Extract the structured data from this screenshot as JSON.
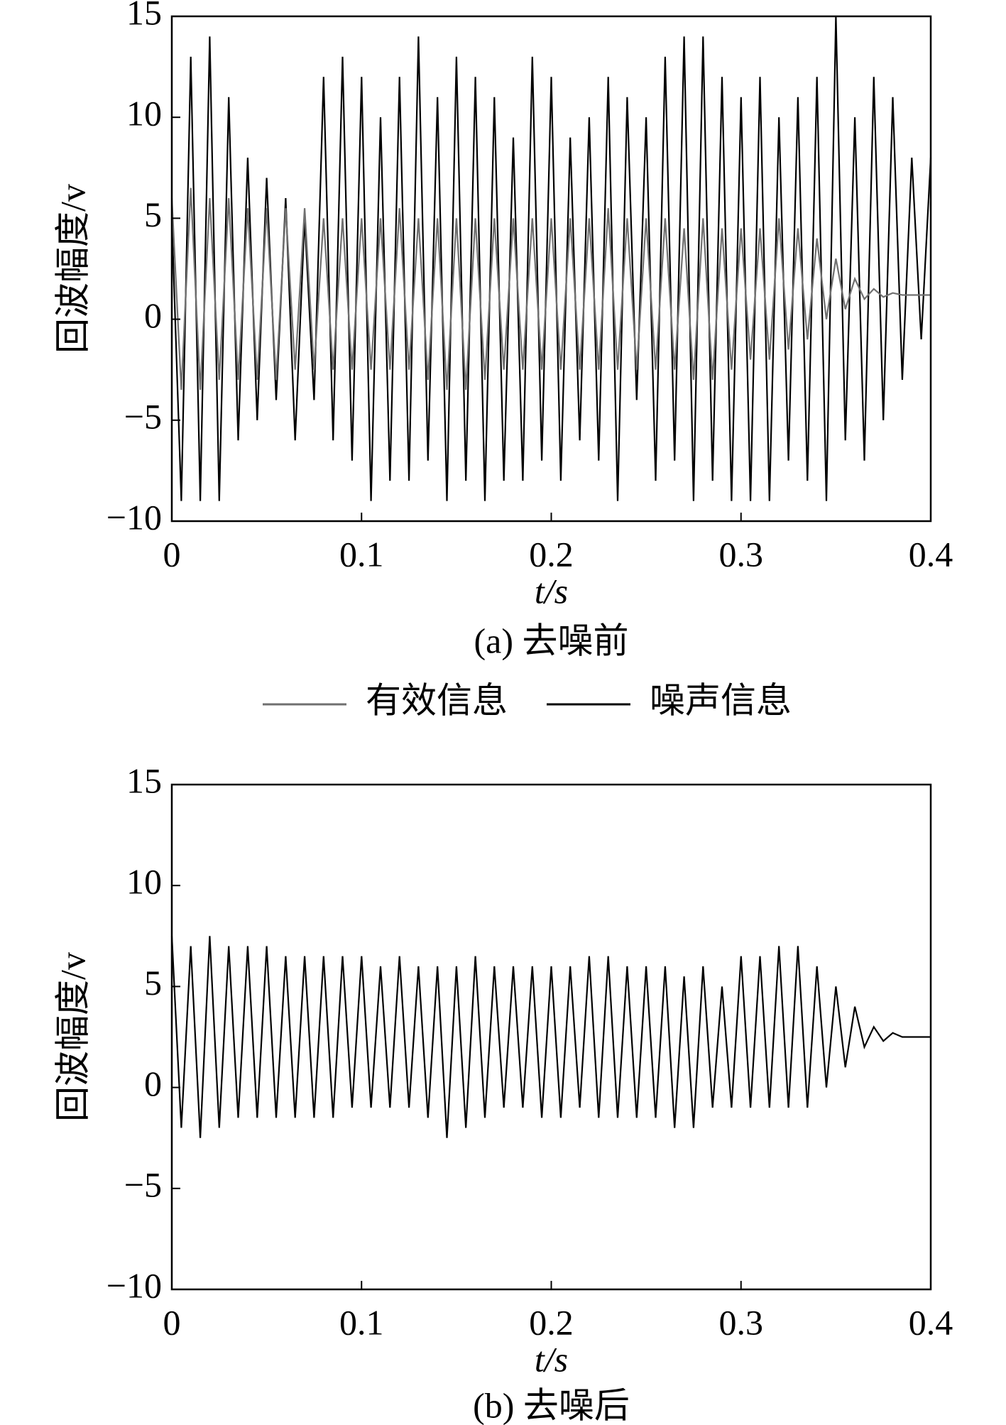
{
  "chart_data": [
    {
      "type": "line",
      "xlabel": "t/s",
      "ylabel": "回波幅度/v",
      "caption": "(a) 去噪前",
      "xlim": [
        0,
        0.4
      ],
      "ylim": [
        -10,
        15
      ],
      "xticks": [
        0,
        0.1,
        0.2,
        0.3,
        0.4
      ],
      "yticks": [
        {
          "value": -10,
          "label": "−10"
        },
        {
          "value": -5,
          "label": "−5"
        },
        0,
        5,
        10,
        15
      ],
      "legend": "below",
      "x": [
        0,
        0.005,
        0.01,
        0.015,
        0.02,
        0.025,
        0.03,
        0.035,
        0.04,
        0.045,
        0.05,
        0.055,
        0.06,
        0.065,
        0.07,
        0.075,
        0.08,
        0.085,
        0.09,
        0.095,
        0.1,
        0.105,
        0.11,
        0.115,
        0.12,
        0.125,
        0.13,
        0.135,
        0.14,
        0.145,
        0.15,
        0.155,
        0.16,
        0.165,
        0.17,
        0.175,
        0.18,
        0.185,
        0.19,
        0.195,
        0.2,
        0.205,
        0.21,
        0.215,
        0.22,
        0.225,
        0.23,
        0.235,
        0.24,
        0.245,
        0.25,
        0.255,
        0.26,
        0.265,
        0.27,
        0.275,
        0.28,
        0.285,
        0.29,
        0.295,
        0.3,
        0.305,
        0.31,
        0.315,
        0.32,
        0.325,
        0.33,
        0.335,
        0.34,
        0.345,
        0.35,
        0.355,
        0.36,
        0.365,
        0.37,
        0.375,
        0.38,
        0.385,
        0.39,
        0.395,
        0.4
      ],
      "series": [
        {
          "name": "噪声信息",
          "color": "#000000",
          "values": [
            5,
            -9,
            13,
            -9,
            14,
            -9,
            11,
            -6,
            8,
            -5,
            7,
            -4,
            6,
            -6,
            5,
            -4,
            12,
            -6,
            13,
            -7,
            12,
            -9,
            10,
            -8,
            12,
            -8,
            14,
            -7,
            11,
            -9,
            13,
            -8,
            12,
            -9,
            11,
            -8,
            9,
            -8,
            13,
            -7,
            12,
            -8,
            9,
            -6,
            10,
            -7,
            12,
            -9,
            11,
            -4,
            10,
            -8,
            13,
            -7,
            14,
            -9,
            14,
            -8,
            12,
            -9,
            11,
            -9,
            12,
            -9,
            10,
            -7,
            11,
            -8,
            12,
            -9,
            15,
            -6,
            10,
            -7,
            12,
            -5,
            11,
            -3,
            8,
            -1,
            8
          ]
        },
        {
          "name": "有效信息",
          "color": "#707070",
          "values": [
            6,
            -3.5,
            6.5,
            -3.5,
            6,
            -3,
            6,
            -3,
            5.5,
            -3,
            5.5,
            -3,
            5.5,
            -2.5,
            5.5,
            -2.5,
            5,
            -2.5,
            5,
            -2.5,
            5,
            -2.5,
            5,
            -2.5,
            5.5,
            -2.5,
            5,
            -3,
            5,
            -3.5,
            5,
            -3.5,
            5,
            -3,
            5,
            -2.5,
            5,
            -2.5,
            5,
            -2.5,
            5,
            -2.5,
            5,
            -2.5,
            5,
            -2.5,
            5.5,
            -2.5,
            5,
            -2.5,
            5,
            -2.5,
            5,
            -2.5,
            4.5,
            -3,
            5,
            -3,
            4.5,
            -2.5,
            4.5,
            -2,
            4.5,
            -2,
            5,
            -1.5,
            4.5,
            -1,
            4,
            0,
            3,
            0.5,
            2,
            1,
            1.5,
            1.1,
            1.3,
            1.2,
            1.2,
            1.2,
            1.2
          ]
        }
      ]
    },
    {
      "type": "line",
      "xlabel": "t/s",
      "ylabel": "回波幅度/v",
      "caption": "(b) 去噪后",
      "xlim": [
        0,
        0.4
      ],
      "ylim": [
        -10,
        15
      ],
      "xticks": [
        0,
        0.1,
        0.2,
        0.3,
        0.4
      ],
      "yticks": [
        {
          "value": -10,
          "label": "−10"
        },
        {
          "value": -5,
          "label": "−5"
        },
        0,
        5,
        10,
        15
      ],
      "x": [
        0,
        0.005,
        0.01,
        0.015,
        0.02,
        0.025,
        0.03,
        0.035,
        0.04,
        0.045,
        0.05,
        0.055,
        0.06,
        0.065,
        0.07,
        0.075,
        0.08,
        0.085,
        0.09,
        0.095,
        0.1,
        0.105,
        0.11,
        0.115,
        0.12,
        0.125,
        0.13,
        0.135,
        0.14,
        0.145,
        0.15,
        0.155,
        0.16,
        0.165,
        0.17,
        0.175,
        0.18,
        0.185,
        0.19,
        0.195,
        0.2,
        0.205,
        0.21,
        0.215,
        0.22,
        0.225,
        0.23,
        0.235,
        0.24,
        0.245,
        0.25,
        0.255,
        0.26,
        0.265,
        0.27,
        0.275,
        0.28,
        0.285,
        0.29,
        0.295,
        0.3,
        0.305,
        0.31,
        0.315,
        0.32,
        0.325,
        0.33,
        0.335,
        0.34,
        0.345,
        0.35,
        0.355,
        0.36,
        0.365,
        0.37,
        0.375,
        0.38,
        0.385,
        0.39,
        0.395,
        0.4
      ],
      "color": "#000000",
      "values": [
        7.5,
        -2,
        7,
        -2.5,
        7.5,
        -2,
        7,
        -1.5,
        7,
        -1.5,
        7,
        -1.5,
        6.5,
        -1.5,
        6.5,
        -1.5,
        6.5,
        -1.5,
        6.5,
        -1,
        6.5,
        -1,
        6,
        -1,
        6.5,
        -1,
        6,
        -1.5,
        6,
        -2.5,
        6,
        -2,
        6.5,
        -1.5,
        6,
        -1,
        6,
        -1,
        6,
        -1.5,
        6,
        -1.5,
        6,
        -1,
        6.5,
        -1.5,
        6.5,
        -1.5,
        6,
        -1.5,
        6,
        -1.5,
        6,
        -2,
        5.5,
        -2,
        6,
        -1,
        5,
        -1,
        6.5,
        -1,
        6.5,
        -1,
        7,
        -1,
        7,
        -1,
        6,
        0,
        5,
        1,
        4,
        2,
        3,
        2.3,
        2.7,
        2.5,
        2.5,
        2.5,
        2.5
      ]
    }
  ]
}
